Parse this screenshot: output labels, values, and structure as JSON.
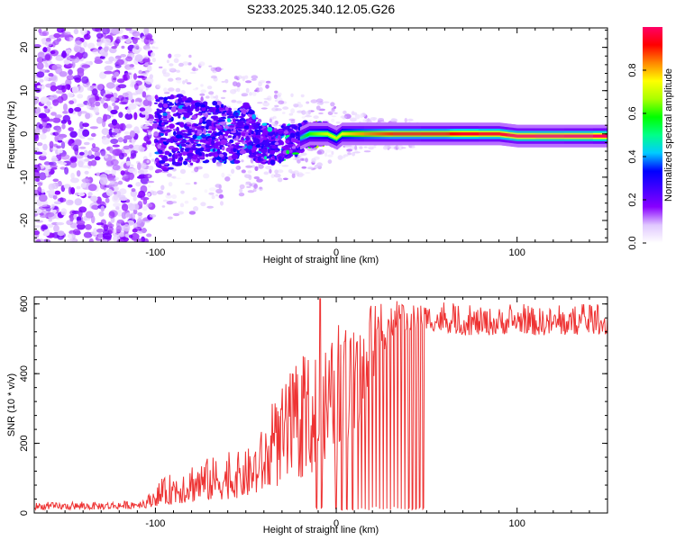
{
  "figure": {
    "title": "S233.2025.340.12.05.G26"
  },
  "chart_data": [
    {
      "type": "heatmap",
      "title": "S233.2025.340.12.05.G26",
      "xlabel": "Height of straight line (km)",
      "ylabel": "Frequency (Hz)",
      "xlim": [
        -167,
        150
      ],
      "ylim": [
        -25,
        24.5
      ],
      "xticks": [
        -100,
        0,
        100
      ],
      "xtick_labels": [
        "-100",
        "0",
        "100"
      ],
      "yticks": [
        20,
        10,
        0,
        -10,
        -20
      ],
      "ytick_labels": [
        "20",
        "10",
        "0",
        "-10",
        "-20"
      ],
      "colorbar": {
        "label": "Normalized spectral amplitude",
        "range": [
          0.0,
          1.0
        ],
        "ticks": [
          0.0,
          0.2,
          0.4,
          0.6,
          0.8
        ],
        "tick_labels": [
          "0.0",
          "0.2",
          "0.4",
          "0.6",
          "0.8"
        ],
        "colors": [
          "#ffffff",
          "#e0c8ff",
          "#8800ff",
          "#4400ff",
          "#0000ff",
          "#00ccff",
          "#00ff88",
          "#00ff00",
          "#aaff00",
          "#ffff00",
          "#ff8800",
          "#ff0000",
          "#ff0066"
        ]
      },
      "ridge": {
        "x": [
          -95,
          -85,
          -75,
          -65,
          -55,
          -50,
          -45,
          -40,
          -35,
          -30,
          -25,
          -20,
          -15,
          -10,
          -5,
          0,
          3,
          10,
          20,
          30,
          40,
          50,
          60,
          70,
          80,
          90,
          100,
          110,
          120,
          130,
          140,
          150
        ],
        "frequency": [
          0,
          1,
          0,
          0.5,
          -1,
          2,
          -1,
          -2,
          -2.5,
          -2,
          -1.5,
          -1,
          0,
          0,
          0,
          -1,
          0,
          0,
          0,
          0,
          0,
          0,
          0,
          0,
          0,
          0,
          -0.5,
          -0.5,
          -0.5,
          -0.5,
          -0.5,
          -0.5
        ],
        "amplitude": [
          0.15,
          0.2,
          0.2,
          0.25,
          0.3,
          0.3,
          0.3,
          0.3,
          0.35,
          0.4,
          0.45,
          0.5,
          0.6,
          0.65,
          0.7,
          0.7,
          0.75,
          0.8,
          0.85,
          0.9,
          0.9,
          0.9,
          0.9,
          0.95,
          0.95,
          0.95,
          1.0,
          1.0,
          1.0,
          1.0,
          1.0,
          1.0
        ]
      }
    },
    {
      "type": "line",
      "xlabel": "Height of straight line (km)",
      "ylabel": "SNR (10 * v/v)",
      "xlim": [
        -167,
        150
      ],
      "ylim": [
        0,
        620
      ],
      "xticks": [
        -100,
        0,
        100
      ],
      "xtick_labels": [
        "-100",
        "0",
        "100"
      ],
      "yticks": [
        0,
        200,
        400,
        600
      ],
      "ytick_labels": [
        "0",
        "200",
        "400",
        "600"
      ],
      "color": "#ee3333",
      "envelope": {
        "x": [
          -167,
          -150,
          -130,
          -115,
          -105,
          -100,
          -90,
          -80,
          -70,
          -60,
          -50,
          -45,
          -40,
          -35,
          -30,
          -25,
          -20,
          -15,
          -10,
          -5,
          0,
          5,
          10,
          15,
          20,
          25,
          30,
          35,
          40,
          45,
          50,
          55,
          60,
          70,
          80,
          90,
          100,
          110,
          120,
          130,
          140,
          150
        ],
        "low": [
          10,
          10,
          10,
          12,
          15,
          20,
          25,
          30,
          35,
          40,
          45,
          50,
          60,
          70,
          80,
          90,
          100,
          110,
          120,
          130,
          150,
          170,
          200,
          260,
          380,
          450,
          500,
          520,
          520,
          530,
          530,
          520,
          520,
          510,
          510,
          510,
          520,
          510,
          510,
          510,
          515,
          510
        ],
        "high": [
          30,
          30,
          32,
          35,
          45,
          80,
          120,
          150,
          160,
          170,
          180,
          210,
          250,
          300,
          360,
          400,
          430,
          460,
          480,
          500,
          500,
          520,
          530,
          560,
          580,
          590,
          600,
          600,
          595,
          600,
          600,
          595,
          600,
          590,
          590,
          590,
          595,
          590,
          590,
          590,
          595,
          590
        ]
      },
      "dropouts_x": [
        -11,
        -8,
        0,
        3,
        6,
        9,
        12,
        14,
        16,
        18,
        20,
        22,
        24,
        26,
        28,
        30,
        32,
        34,
        36,
        38,
        40,
        42,
        44,
        46,
        48
      ],
      "peak": {
        "x": -9,
        "y": 615
      }
    }
  ]
}
